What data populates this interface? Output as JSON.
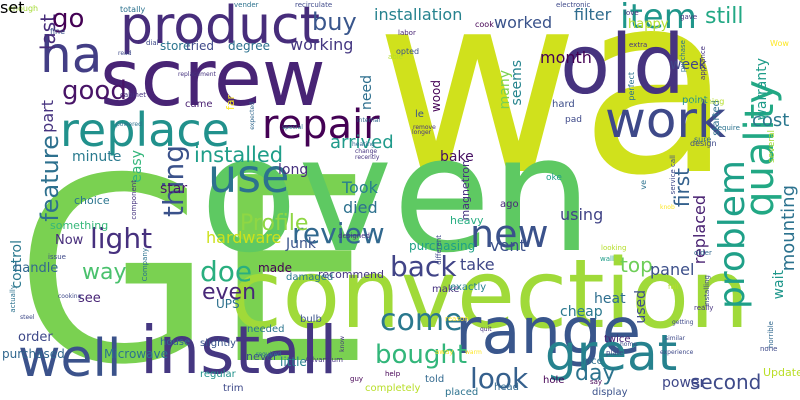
{
  "wordcloud": {
    "words": [
      {
        "text": "wa",
        "color": "#d0e11c"
      },
      {
        "text": "GE",
        "color": "#7ad151"
      },
      {
        "text": "oven",
        "color": "#5ec962"
      },
      {
        "text": "convection",
        "color": "#a0da39"
      },
      {
        "text": "screw",
        "color": "#482475"
      },
      {
        "text": "product",
        "color": "#472d7b"
      },
      {
        "text": "old",
        "color": "#46337f"
      },
      {
        "text": "install",
        "color": "#453781"
      },
      {
        "text": "range",
        "color": "#39568c"
      },
      {
        "text": "great",
        "color": "#26828e"
      },
      {
        "text": "well",
        "color": "#3b528b"
      },
      {
        "text": "replace",
        "color": "#21918c"
      },
      {
        "text": "work",
        "color": "#3e4989"
      },
      {
        "text": "ha",
        "color": "#433e85"
      },
      {
        "text": "quality",
        "color": "#22a884"
      },
      {
        "text": "repair",
        "color": "#440154"
      },
      {
        "text": "use",
        "color": "#2c728e"
      },
      {
        "text": "problem",
        "color": "#1fa088"
      },
      {
        "text": "item",
        "color": "#1f968b"
      },
      {
        "text": "new",
        "color": "#3b528b"
      },
      {
        "text": "bought",
        "color": "#32b67a"
      },
      {
        "text": "come",
        "color": "#2a788e"
      },
      {
        "text": "back",
        "color": "#414487"
      },
      {
        "text": "look",
        "color": "#35608d"
      },
      {
        "text": "feature",
        "color": "#2d708e"
      },
      {
        "text": "light",
        "color": "#46307e"
      },
      {
        "text": "thing",
        "color": "#3b528b"
      },
      {
        "text": "review",
        "color": "#31688e"
      },
      {
        "text": "doe",
        "color": "#29af7f"
      },
      {
        "text": "good",
        "color": "#481467"
      },
      {
        "text": "Profile",
        "color": "#8fd744"
      },
      {
        "text": "still",
        "color": "#22a884"
      },
      {
        "text": "last",
        "color": "#472c7a"
      },
      {
        "text": "way",
        "color": "#4ac16d"
      },
      {
        "text": "installed",
        "color": "#1f9e89"
      },
      {
        "text": "even",
        "color": "#482878"
      },
      {
        "text": "buy",
        "color": "#39568c"
      },
      {
        "text": "part",
        "color": "#46337f"
      },
      {
        "text": "go",
        "color": "#440154"
      },
      {
        "text": "day",
        "color": "#2c738e"
      },
      {
        "text": "first",
        "color": "#34618d"
      },
      {
        "text": "second",
        "color": "#3e4a89"
      },
      {
        "text": "cost",
        "color": "#2a778e"
      },
      {
        "text": "top",
        "color": "#6ece58"
      },
      {
        "text": "mounting",
        "color": "#2c728e"
      },
      {
        "text": "installation",
        "color": "#26828e"
      },
      {
        "text": "worked",
        "color": "#3a538b"
      },
      {
        "text": "filter",
        "color": "#2f6c8e"
      },
      {
        "text": "working",
        "color": "#453882"
      },
      {
        "text": "month",
        "color": "#440154"
      },
      {
        "text": "arrived",
        "color": "#1f9a8a"
      },
      {
        "text": "Took",
        "color": "#277f8e"
      },
      {
        "text": "died",
        "color": "#2d718e"
      },
      {
        "text": "vent",
        "color": "#3b518b"
      },
      {
        "text": "replaced",
        "color": "#482071"
      },
      {
        "text": "panel",
        "color": "#3c4f8a"
      },
      {
        "text": "wait",
        "color": "#1f978b"
      },
      {
        "text": "warranty",
        "color": "#1e9c89"
      },
      {
        "text": "seems",
        "color": "#25848e"
      },
      {
        "text": "many",
        "color": "#7ad151"
      },
      {
        "text": "using",
        "color": "#414487"
      },
      {
        "text": "heat",
        "color": "#2e6e8e"
      },
      {
        "text": "take",
        "color": "#3f4788"
      },
      {
        "text": "cheap",
        "color": "#2a788e"
      },
      {
        "text": "used",
        "color": "#3e4c8a"
      },
      {
        "text": "bake",
        "color": "#471063"
      },
      {
        "text": "happy",
        "color": "#b5de2b"
      },
      {
        "text": "week",
        "color": "#404588"
      },
      {
        "text": "easy",
        "color": "#32b67a"
      },
      {
        "text": "store",
        "color": "#2b758e"
      },
      {
        "text": "tried",
        "color": "#3e4989"
      },
      {
        "text": "degree",
        "color": "#2c718e"
      },
      {
        "text": "need",
        "color": "#2e6f8e"
      },
      {
        "text": "minute",
        "color": "#297a8e"
      },
      {
        "text": "star",
        "color": "#48186a"
      },
      {
        "text": "long",
        "color": "#46317e"
      },
      {
        "text": "hardware",
        "color": "#cde11d"
      },
      {
        "text": "Junk",
        "color": "#3a548c"
      },
      {
        "text": "control",
        "color": "#2a788e"
      },
      {
        "text": "Now",
        "color": "#472d7b"
      },
      {
        "text": "made",
        "color": "#440154"
      },
      {
        "text": "UPS",
        "color": "#2d718e"
      },
      {
        "text": "recommend",
        "color": "#453581"
      },
      {
        "text": "handle",
        "color": "#31688e"
      },
      {
        "text": "see",
        "color": "#482576"
      },
      {
        "text": "order",
        "color": "#3e4989"
      },
      {
        "text": "purchased",
        "color": "#31678e"
      },
      {
        "text": "Microwave",
        "color": "#2c728e"
      },
      {
        "text": "little",
        "color": "#26818e"
      },
      {
        "text": "power",
        "color": "#3f4889"
      },
      {
        "text": "purchasing",
        "color": "#1fa187"
      },
      {
        "text": "heavy",
        "color": "#27ad81"
      },
      {
        "text": "magnetron",
        "color": "#46327e"
      },
      {
        "text": "choice",
        "color": "#2b758e"
      },
      {
        "text": "something",
        "color": "#35b779"
      },
      {
        "text": "came",
        "color": "#481f70"
      },
      {
        "text": "far",
        "color": "#fde725"
      },
      {
        "text": "wood",
        "color": "#440154"
      },
      {
        "text": "le",
        "color": "#3b528b"
      },
      {
        "text": "ago",
        "color": "#482979"
      },
      {
        "text": "nice",
        "color": "#2d708e"
      },
      {
        "text": "hard",
        "color": "#3d4e8a"
      },
      {
        "text": "point",
        "color": "#21918c"
      },
      {
        "text": "started",
        "color": "#2e6f8e"
      },
      {
        "text": "several",
        "color": "#a8db34"
      },
      {
        "text": "never",
        "color": "#3b528b"
      },
      {
        "text": "slightly",
        "color": "#39568c"
      },
      {
        "text": "house",
        "color": "#31688e"
      },
      {
        "text": "Update",
        "color": "#bade28"
      },
      {
        "text": "twice",
        "color": "#482173"
      },
      {
        "text": "make",
        "color": "#46337f"
      },
      {
        "text": "exactly",
        "color": "#26818e"
      },
      {
        "text": "damaged",
        "color": "#2a788e"
      },
      {
        "text": "bulb",
        "color": "#3b528b"
      },
      {
        "text": "needed",
        "color": "#2b748e"
      },
      {
        "text": "regular",
        "color": "#21918c"
      },
      {
        "text": "trim",
        "color": "#3e4989"
      },
      {
        "text": "completely",
        "color": "#b8de29"
      },
      {
        "text": "told",
        "color": "#31688e"
      },
      {
        "text": "hole",
        "color": "#440154"
      },
      {
        "text": "head",
        "color": "#31688e"
      },
      {
        "text": "display",
        "color": "#3b528b"
      },
      {
        "text": "placed",
        "color": "#2c728e"
      },
      {
        "text": "pad",
        "color": "#3e4989"
      },
      {
        "text": "oke",
        "color": "#1f9e89"
      },
      {
        "text": "enough",
        "color": "#a5db36"
      },
      {
        "text": "fine",
        "color": "#3b528b"
      },
      {
        "text": "totally",
        "color": "#2c728e"
      },
      {
        "text": "vender",
        "color": "#2c728e"
      },
      {
        "text": "recirculate",
        "color": "#3e4989"
      },
      {
        "text": "electronic",
        "color": "#3e4989"
      },
      {
        "text": "gave",
        "color": "#46337f"
      },
      {
        "text": "love",
        "color": "#46337f"
      },
      {
        "text": "labor",
        "color": "#482475"
      },
      {
        "text": "opted",
        "color": "#3b528b"
      },
      {
        "text": "able",
        "color": "#b5de2b"
      },
      {
        "text": "cook",
        "color": "#440154"
      },
      {
        "text": "Wow",
        "color": "#fde725"
      },
      {
        "text": "extra",
        "color": "#46337f"
      },
      {
        "text": "appliance",
        "color": "#46337f"
      },
      {
        "text": "anything",
        "color": "#b5de2b"
      },
      {
        "text": "perfect",
        "color": "#2c728e"
      },
      {
        "text": "purchase",
        "color": "#2c728e"
      },
      {
        "text": "design",
        "color": "#3e4989"
      },
      {
        "text": "sure",
        "color": "#31688e"
      },
      {
        "text": "require",
        "color": "#2c728e"
      },
      {
        "text": "ve",
        "color": "#2c728e"
      },
      {
        "text": "service call",
        "color": "#3e4989"
      },
      {
        "text": "installing",
        "color": "#3e4989"
      },
      {
        "text": "horrible",
        "color": "#31688e"
      },
      {
        "text": "actually",
        "color": "#2c728e"
      },
      {
        "text": "issue",
        "color": "#3e4989"
      },
      {
        "text": "cooking",
        "color": "#3e4989"
      },
      {
        "text": "required",
        "color": "#2c728e"
      },
      {
        "text": "Company",
        "color": "#2c728e"
      },
      {
        "text": "component",
        "color": "#46337f"
      },
      {
        "text": "designed",
        "color": "#46337f"
      },
      {
        "text": "wall",
        "color": "#1f9e89"
      },
      {
        "text": "looking",
        "color": "#b5de2b"
      },
      {
        "text": "different",
        "color": "#3e4989"
      },
      {
        "text": "reason",
        "color": "#fde725"
      },
      {
        "text": "knob",
        "color": "#fde725"
      },
      {
        "text": "fall",
        "color": "#b5de2b"
      },
      {
        "text": "really",
        "color": "#46337f"
      },
      {
        "text": "away",
        "color": "#fde725"
      },
      {
        "text": "warm",
        "color": "#fde725"
      },
      {
        "text": "plate",
        "color": "#3e4989"
      },
      {
        "text": "say",
        "color": "#440154"
      },
      {
        "text": "help",
        "color": "#440154"
      },
      {
        "text": "guy",
        "color": "#440154"
      },
      {
        "text": "Advantium",
        "color": "#46337f"
      },
      {
        "text": "older",
        "color": "#31688e"
      },
      {
        "text": "none",
        "color": "#3e4989"
      },
      {
        "text": "read",
        "color": "#3e4989"
      },
      {
        "text": "dial",
        "color": "#3e4989"
      },
      {
        "text": "replacement",
        "color": "#46337f"
      },
      {
        "text": "cabinet",
        "color": "#46337f"
      },
      {
        "text": "powered",
        "color": "#2c728e"
      },
      {
        "text": "special",
        "color": "#2c728e"
      },
      {
        "text": "expected",
        "color": "#31688e"
      },
      {
        "text": "internal",
        "color": "#31688e"
      },
      {
        "text": "heating",
        "color": "#31688e"
      },
      {
        "text": "change",
        "color": "#46337f"
      },
      {
        "text": "recently",
        "color": "#46337f"
      },
      {
        "text": "remove",
        "color": "#46337f"
      },
      {
        "text": "longer",
        "color": "#46337f"
      },
      {
        "text": "know",
        "color": "#46337f"
      },
      {
        "text": "quit",
        "color": "#46337f"
      },
      {
        "text": "steel",
        "color": "#3e4989"
      },
      {
        "text": "similar",
        "color": "#3e4989"
      },
      {
        "text": "getting",
        "color": "#3e4989"
      },
      {
        "text": "home",
        "color": "#3e4989"
      },
      {
        "text": "experience",
        "color": "#3e4989"
      },
      {
        "text": "set",
        "color": "#3e4989"
      }
    ]
  }
}
